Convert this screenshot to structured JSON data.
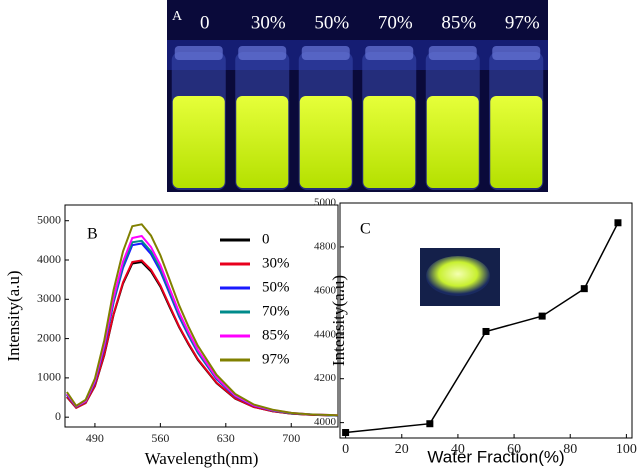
{
  "photo": {
    "panel_label": "A",
    "labels": [
      "0",
      "30%",
      "50%",
      "70%",
      "85%",
      "97%"
    ]
  },
  "chart_data": [
    {
      "type": "line",
      "title": "B",
      "x_label": "Wavelength(nm)",
      "y_label": "Intensity(a.u)",
      "x": [
        460,
        470,
        480,
        490,
        500,
        510,
        520,
        530,
        540,
        550,
        560,
        570,
        580,
        590,
        600,
        620,
        640,
        660,
        680,
        700,
        720,
        750
      ],
      "series": [
        {
          "name": "0",
          "color": "#000000",
          "values": [
            510,
            240,
            360,
            790,
            1580,
            2610,
            3400,
            3910,
            3950,
            3710,
            3320,
            2800,
            2290,
            1860,
            1460,
            870,
            470,
            260,
            150,
            90,
            60,
            40
          ]
        },
        {
          "name": "30%",
          "color": "#e8001c",
          "values": [
            520,
            240,
            360,
            800,
            1600,
            2630,
            3430,
            3950,
            3990,
            3750,
            3350,
            2830,
            2310,
            1880,
            1480,
            880,
            480,
            260,
            150,
            90,
            60,
            40
          ]
        },
        {
          "name": "50%",
          "color": "#1a1aff",
          "values": [
            570,
            270,
            400,
            880,
            1770,
            2920,
            3800,
            4380,
            4420,
            4150,
            3710,
            3140,
            2560,
            2080,
            1640,
            970,
            530,
            290,
            170,
            100,
            70,
            40
          ]
        },
        {
          "name": "70%",
          "color": "#008b8b",
          "values": [
            580,
            270,
            400,
            900,
            1800,
            2960,
            3860,
            4450,
            4490,
            4220,
            3770,
            3190,
            2600,
            2110,
            1660,
            990,
            540,
            300,
            170,
            100,
            70,
            40
          ]
        },
        {
          "name": "85%",
          "color": "#ff00ff",
          "values": [
            600,
            280,
            410,
            920,
            1840,
            3040,
            3960,
            4560,
            4610,
            4330,
            3870,
            3270,
            2670,
            2170,
            1710,
            1010,
            550,
            300,
            180,
            110,
            70,
            50
          ]
        },
        {
          "name": "97%",
          "color": "#808000",
          "values": [
            640,
            290,
            440,
            980,
            1960,
            3240,
            4220,
            4860,
            4910,
            4620,
            4120,
            3490,
            2850,
            2310,
            1820,
            1080,
            590,
            320,
            190,
            110,
            70,
            50
          ]
        }
      ],
      "xlim": [
        458,
        750
      ],
      "ylim": [
        -250,
        5400
      ],
      "xticks": [
        490,
        560,
        630,
        700
      ],
      "yticks": [
        0,
        1000,
        2000,
        3000,
        4000,
        5000
      ],
      "legend": "right",
      "grid": false
    },
    {
      "type": "line",
      "title": "C",
      "x_label": "Water Fraction(%)",
      "y_label": "Intensity(a.u)",
      "x": [
        0,
        30,
        50,
        70,
        85,
        97
      ],
      "series": [
        {
          "name": null,
          "color": "#000000",
          "values": [
            3955,
            3995,
            4415,
            4485,
            4610,
            4910
          ]
        }
      ],
      "xlim": [
        -2,
        102
      ],
      "ylim": [
        3930,
        5000
      ],
      "xticks": [
        0,
        20,
        40,
        60,
        80,
        100
      ],
      "yticks": [
        4000,
        4200,
        4400,
        4600,
        4800,
        5000
      ],
      "markers": true,
      "grid": false
    }
  ]
}
